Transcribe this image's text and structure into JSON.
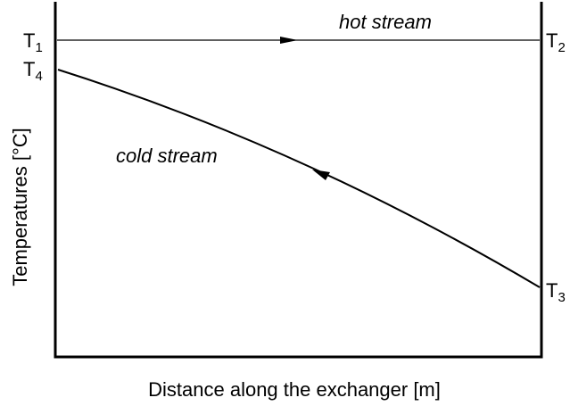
{
  "x_axis_label": "Distance along the exchanger [m]",
  "y_axis_label": "Temperatures [°C]",
  "hot_stream": "hot stream",
  "cold_stream": "cold stream",
  "temperatures": [
    {
      "symbol": "T",
      "subscript": "1"
    },
    {
      "symbol": "T",
      "subscript": "2"
    },
    {
      "symbol": "T",
      "subscript": "3"
    },
    {
      "symbol": "T",
      "subscript": "4"
    }
  ]
}
